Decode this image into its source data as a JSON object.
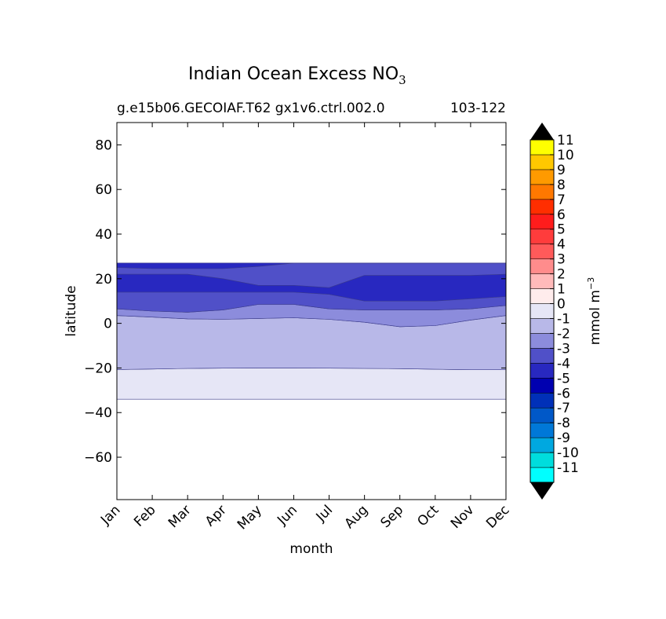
{
  "chart_data": {
    "type": "heatmap",
    "title": "Indian Ocean Excess NO",
    "title_subscript": "3",
    "subtitle_left": "g.e15b06.GECOIAF.T62 gx1v6.ctrl.002.0",
    "subtitle_right": "103-122",
    "xlabel": "month",
    "ylabel": "latitude",
    "x_categories": [
      "Jan",
      "Feb",
      "Mar",
      "Apr",
      "May",
      "Jun",
      "Jul",
      "Aug",
      "Sep",
      "Oct",
      "Nov",
      "Dec"
    ],
    "ylim": [
      -79,
      90
    ],
    "yticks": [
      80,
      60,
      40,
      20,
      0,
      -20,
      -40,
      -60
    ],
    "ytick_labels": [
      "80",
      "60",
      "40",
      "20",
      "0",
      "−20",
      "−40",
      "−60"
    ],
    "colorbar": {
      "label_main": "mmol m",
      "label_sup": "−3",
      "levels": [
        -11,
        -10,
        -9,
        -8,
        -7,
        -6,
        -5,
        -4,
        -3,
        -2,
        -1,
        0,
        1,
        2,
        3,
        4,
        5,
        6,
        7,
        8,
        9,
        10,
        11
      ],
      "level_labels": [
        "-11",
        "-10",
        "-9",
        "-8",
        "-7",
        "-6",
        "-5",
        "-4",
        "-3",
        "-2",
        "-1",
        "0",
        "1",
        "2",
        "3",
        "4",
        "5",
        "6",
        "7",
        "8",
        "9",
        "10",
        "11"
      ],
      "colors": [
        "#00ffff",
        "#00dddd",
        "#00a8e0",
        "#0078d8",
        "#0058c8",
        "#0030b8",
        "#0000b0",
        "#2828c0",
        "#5050c8",
        "#8c8cdc",
        "#b8b8e8",
        "#e6e6f6",
        "#ffecec",
        "#ffbaba",
        "#ff8c8c",
        "#ff5a5a",
        "#ff3c3c",
        "#ff1c1c",
        "#ff2e00",
        "#ff7800",
        "#ff9a00",
        "#ffc800",
        "#ffff00"
      ],
      "under_color": "#000000",
      "over_color": "#000000"
    },
    "field": {
      "x": [
        0,
        1,
        2,
        3,
        4,
        5,
        6,
        7,
        8,
        9,
        10,
        11
      ],
      "levels_region": [
        {
          "level": -1,
          "color": "#e6e6f6",
          "top": [
            -20.7,
            -20.5,
            -20.2,
            -20.1,
            -20.0,
            -20.0,
            -20.1,
            -20.2,
            -20.3,
            -20.6,
            -20.8,
            -20.8
          ],
          "bottom": [
            -34,
            -34,
            -34,
            -34,
            -34,
            -34,
            -34,
            -34,
            -34,
            -34,
            -34,
            -34
          ]
        },
        {
          "level": -2,
          "color": "#b8b8e8",
          "top": [
            3.5,
            2.8,
            2.0,
            1.8,
            2.2,
            2.5,
            1.8,
            0.5,
            -1.5,
            -1.0,
            1.5,
            3.5
          ],
          "bottom": [
            -20.7,
            -20.5,
            -20.2,
            -20.1,
            -20.0,
            -20.0,
            -20.1,
            -20.2,
            -20.3,
            -20.6,
            -20.8,
            -20.8
          ]
        },
        {
          "level": -3,
          "color": "#8c8cdc",
          "top": [
            6.5,
            5.5,
            5.0,
            6.0,
            8.5,
            8.5,
            6.5,
            6.0,
            6.0,
            6.0,
            6.5,
            8.0
          ],
          "bottom": [
            3.5,
            2.8,
            2.0,
            1.8,
            2.2,
            2.5,
            1.8,
            0.5,
            -1.5,
            -1.0,
            1.5,
            3.5
          ]
        },
        {
          "level": -4,
          "color": "#5050c8",
          "top": [
            27,
            27,
            27,
            27,
            27,
            27,
            27,
            27,
            27,
            27,
            27,
            27
          ],
          "bottom": [
            6.5,
            5.5,
            5.0,
            6.0,
            8.5,
            8.5,
            6.5,
            6.0,
            6.0,
            6.0,
            6.5,
            8.0
          ]
        },
        {
          "level": -5,
          "color": "#2828c0",
          "top": [
            22,
            22,
            22,
            20,
            17,
            17,
            16,
            21.5,
            21.5,
            21.5,
            21.5,
            22
          ],
          "bottom": [
            14,
            14,
            14,
            14,
            14,
            14,
            13,
            10,
            10,
            10,
            11,
            12
          ]
        },
        {
          "level": -5,
          "color": "#2828c0",
          "top": [
            27,
            27,
            27,
            27,
            27,
            27,
            27,
            27,
            27,
            27,
            27,
            27
          ],
          "bottom": [
            25,
            24.5,
            24.5,
            24.5,
            25.5,
            27,
            27,
            27,
            27,
            27,
            27,
            27
          ]
        }
      ]
    }
  }
}
